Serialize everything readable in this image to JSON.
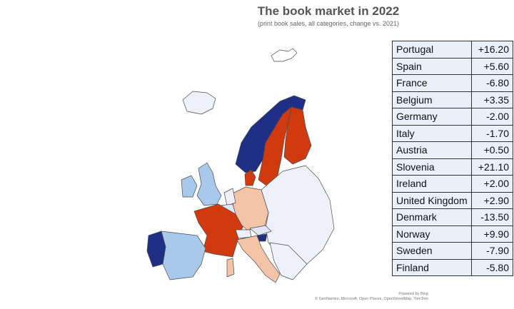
{
  "title": "The book market in 2022",
  "subtitle": "(print book sales, all categories, change vs. 2021)",
  "colors": {
    "strong_positive": "#1f2f86",
    "moderate_positive": "#a9c9ec",
    "slight_positive": "#dfe6f5",
    "no_data": "#eef1fa",
    "slight_negative": "#f3c4a7",
    "strong_negative": "#d13a0e"
  },
  "table": {
    "rows": [
      {
        "country": "Portugal",
        "value": "+16.20"
      },
      {
        "country": "Spain",
        "value": "+5.60"
      },
      {
        "country": "France",
        "value": "-6.80"
      },
      {
        "country": "Belgium",
        "value": "+3.35"
      },
      {
        "country": "Germany",
        "value": "-2.00"
      },
      {
        "country": "Italy",
        "value": "-1.70"
      },
      {
        "country": "Austria",
        "value": "+0.50"
      },
      {
        "country": "Slovenia",
        "value": "+21.10"
      },
      {
        "country": "Ireland",
        "value": "+2.00"
      },
      {
        "country": "United Kingdom",
        "value": "+2.90"
      },
      {
        "country": "Denmark",
        "value": "-13.50"
      },
      {
        "country": "Norway",
        "value": "+9.90"
      },
      {
        "country": "Sweden",
        "value": "-7.90"
      },
      {
        "country": "Finland",
        "value": "-5.80"
      }
    ]
  },
  "attribution": {
    "powered": "Powered by Bing",
    "credits": "© GeoNames, Microsoft, Open Places, OpenStreetMap, TomTom"
  }
}
